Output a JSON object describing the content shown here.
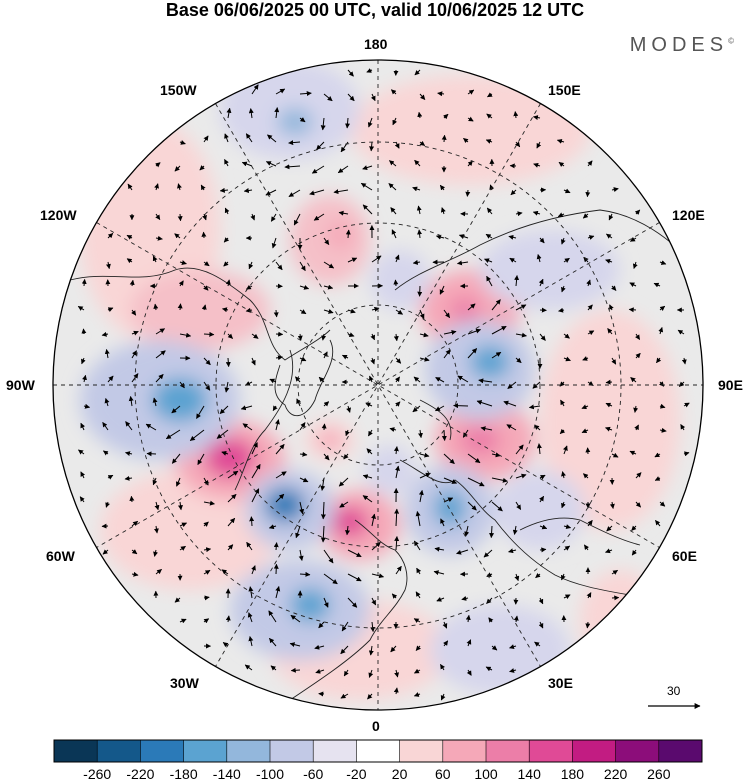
{
  "title": "Base 06/06/2025 00 UTC, valid 10/06/2025 12 UTC",
  "brand": "MODES",
  "brand_mark": "©",
  "longitude_labels": {
    "top": "180",
    "bottom": "0",
    "left": "90W",
    "right": "90E",
    "upper_left_1": "150W",
    "upper_left_2": "120W",
    "upper_right_1": "150E",
    "upper_right_2": "120E",
    "lower_left_1": "60W",
    "lower_left_2": "30W",
    "lower_right_1": "60E",
    "lower_right_2": "30E"
  },
  "reference_vector_label": "30",
  "colorbar": {
    "labels": [
      "-260",
      "-220",
      "-180",
      "-140",
      "-100",
      "-60",
      "-20",
      "20",
      "60",
      "100",
      "140",
      "180",
      "220",
      "260"
    ],
    "colors": [
      "#0a3656",
      "#14588a",
      "#2b7ab8",
      "#5ba3d1",
      "#93b7dc",
      "#c2c9e6",
      "#e6e3f0",
      "#ffffff",
      "#f9d6d6",
      "#f5a8b8",
      "#ec7ea8",
      "#e04a96",
      "#c21c82",
      "#8c0d7a",
      "#5a0a6e"
    ]
  },
  "colors": {
    "map_background": "#eaeaea",
    "negative_anomaly": "#2b7ab8",
    "positive_anomaly": "#e04a96"
  }
}
